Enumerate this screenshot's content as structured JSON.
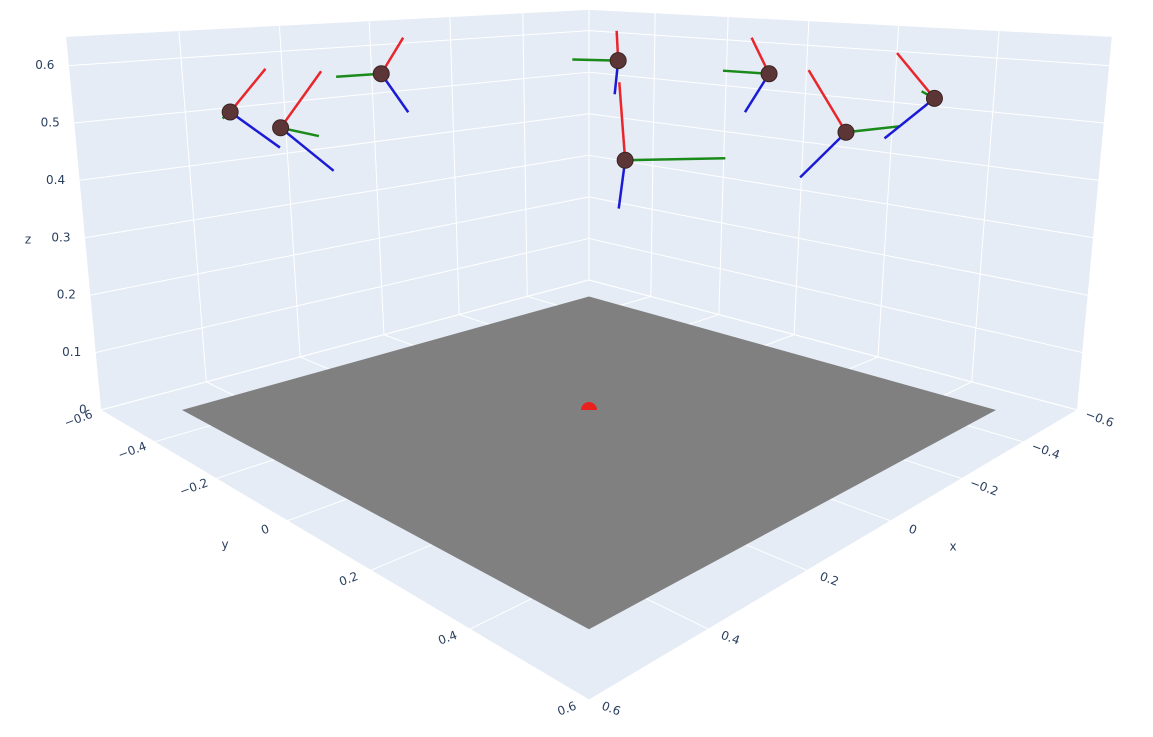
{
  "chart_data": {
    "type": "scatter3d",
    "xlim": [
      -0.6,
      0.6
    ],
    "ylim": [
      -0.6,
      0.6
    ],
    "zlim": [
      0,
      0.65
    ],
    "xticks": [
      {
        "value": -0.6,
        "label": "−0.6"
      },
      {
        "value": -0.4,
        "label": "−0.4"
      },
      {
        "value": -0.2,
        "label": "−0.2"
      },
      0,
      0.2,
      0.4,
      0.6
    ],
    "yticks": [
      {
        "value": -0.6,
        "label": "−0.6"
      },
      {
        "value": -0.4,
        "label": "−0.4"
      },
      {
        "value": -0.2,
        "label": "−0.2"
      },
      0,
      0.2,
      0.4,
      0.6
    ],
    "zticks": [
      0,
      0.1,
      0.2,
      0.3,
      0.4,
      0.5,
      0.6
    ],
    "xlabel": "x",
    "ylabel": "y",
    "zlabel": "z",
    "grid": true,
    "plane": {
      "x": [
        -0.5,
        0.5
      ],
      "y": [
        -0.5,
        0.5
      ],
      "z": 0,
      "color": "#808080"
    },
    "origin": {
      "x": 0,
      "y": 0,
      "z": 0,
      "color": "#e8211f"
    },
    "cameras": {
      "color": "#5c3636",
      "x": [
        0.344,
        0.39,
        0.32,
        -0.1,
        0.23,
        -0.1,
        -0.21,
        -0.35
      ],
      "y": [
        -0.545,
        -0.31,
        -0.13,
        -0.03,
        0.3,
        0.29,
        0.36,
        0.43
      ],
      "z": [
        0.5,
        0.5,
        0.6,
        0.6,
        0.5,
        0.6,
        0.5,
        0.55
      ]
    },
    "frames": [
      {
        "color": "#e8262b",
        "dx": [
          -0.047,
          -0.049,
          -0.025,
          0.002,
          0.006,
          0.02,
          0.044,
          0.045
        ],
        "dy": [
          0.047,
          0.049,
          0.025,
          -0.002,
          -0.006,
          -0.02,
          -0.044,
          -0.045
        ],
        "dz": [
          0.08,
          0.096,
          0.059,
          0.054,
          0.113,
          0.059,
          0.103,
          0.077
        ]
      },
      {
        "color": "#1a8a1a",
        "dx": [
          0.01,
          -0.043,
          0.049,
          0.055,
          -0.097,
          0.05,
          -0.06,
          0.015
        ],
        "dy": [
          -0.01,
          0.043,
          -0.049,
          -0.055,
          0.097,
          -0.05,
          0.06,
          -0.015
        ],
        "dz": [
          -0.012,
          -0.014,
          -0.005,
          0.002,
          0.003,
          0.005,
          0.01,
          0.012
        ]
      },
      {
        "color": "#1b1bd6",
        "dx": [
          -0.059,
          -0.058,
          -0.028,
          0.004,
          0.006,
          0.025,
          0.049,
          0.054
        ],
        "dy": [
          0.059,
          0.058,
          0.028,
          -0.004,
          -0.006,
          -0.025,
          -0.049,
          -0.054
        ],
        "dz": [
          -0.066,
          -0.073,
          -0.063,
          -0.061,
          -0.07,
          -0.063,
          -0.075,
          -0.068
        ]
      }
    ]
  }
}
